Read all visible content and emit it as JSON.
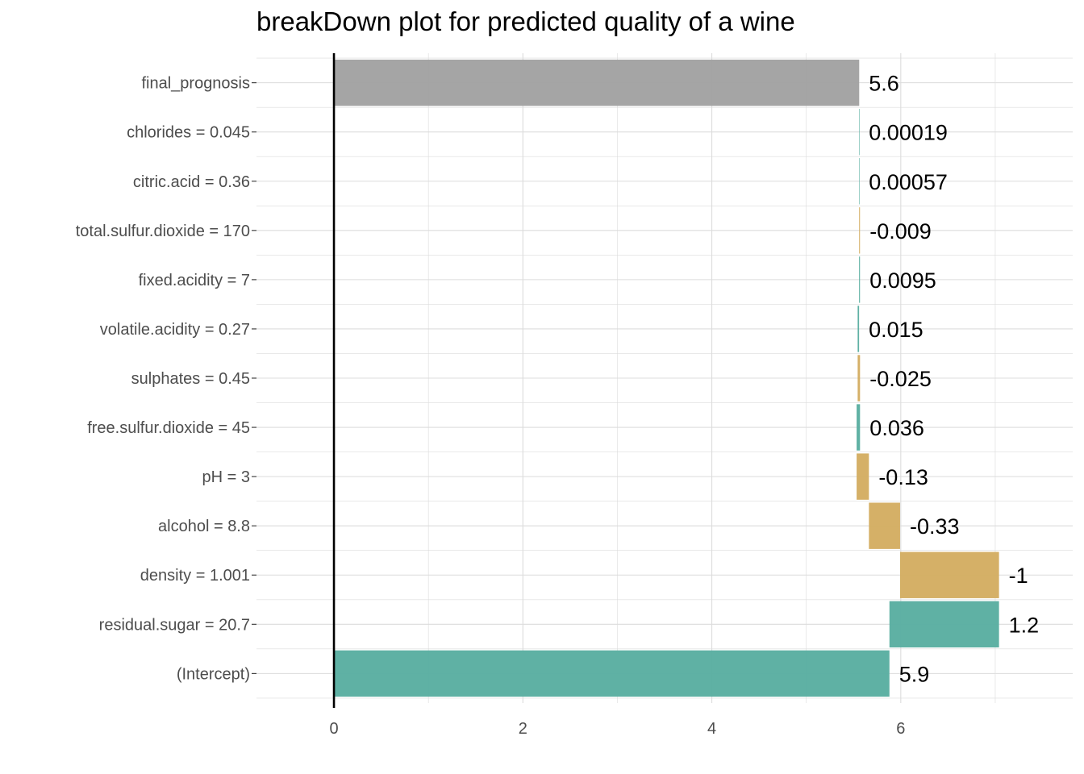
{
  "chart_data": {
    "type": "bar",
    "variant": "waterfall-breakdown",
    "orientation": "horizontal",
    "title": "breakDown plot for predicted quality of a wine",
    "xlabel": "",
    "ylabel": "",
    "xlim": [
      -0.82,
      7.82
    ],
    "x_ticks": [
      0,
      2,
      4,
      6
    ],
    "x_tick_labels": [
      "0",
      "2",
      "4",
      "6"
    ],
    "grid": true,
    "legend": "none",
    "colors": {
      "positive": "#5aaea1",
      "negative": "#d4ad62",
      "final": "#a2a2a2",
      "axis_line": "#000000",
      "grid": "#dcdcdc"
    },
    "rows": [
      {
        "label": "final_prognosis",
        "value_label": "5.6",
        "start": 0,
        "end": 5.56,
        "kind": "final"
      },
      {
        "label": "chlorides = 0.045",
        "value_label": "0.00019",
        "start": 5.5598,
        "end": 5.56,
        "kind": "positive"
      },
      {
        "label": "citric.acid = 0.36",
        "value_label": "0.00057",
        "start": 5.5592,
        "end": 5.5598,
        "kind": "positive"
      },
      {
        "label": "total.sulfur.dioxide = 170",
        "value_label": "-0.009",
        "start": 5.5682,
        "end": 5.5592,
        "kind": "negative"
      },
      {
        "label": "fixed.acidity = 7",
        "value_label": "0.0095",
        "start": 5.5587,
        "end": 5.5682,
        "kind": "positive"
      },
      {
        "label": "volatile.acidity = 0.27",
        "value_label": "0.015",
        "start": 5.5437,
        "end": 5.5587,
        "kind": "positive"
      },
      {
        "label": "sulphates = 0.45",
        "value_label": "-0.025",
        "start": 5.5687,
        "end": 5.5437,
        "kind": "negative"
      },
      {
        "label": "free.sulfur.dioxide = 45",
        "value_label": "0.036",
        "start": 5.5327,
        "end": 5.5687,
        "kind": "positive"
      },
      {
        "label": "pH = 3",
        "value_label": "-0.13",
        "start": 5.6627,
        "end": 5.5327,
        "kind": "negative"
      },
      {
        "label": "alcohol = 8.8",
        "value_label": "-0.33",
        "start": 5.9927,
        "end": 5.6627,
        "kind": "negative"
      },
      {
        "label": "density = 1.001",
        "value_label": "-1",
        "start": 7.04,
        "end": 5.9927,
        "kind": "negative"
      },
      {
        "label": "residual.sugar = 20.7",
        "value_label": "1.2",
        "start": 5.88,
        "end": 7.04,
        "kind": "positive"
      },
      {
        "label": "(Intercept)",
        "value_label": "5.9",
        "start": 0,
        "end": 5.88,
        "kind": "positive"
      }
    ]
  }
}
